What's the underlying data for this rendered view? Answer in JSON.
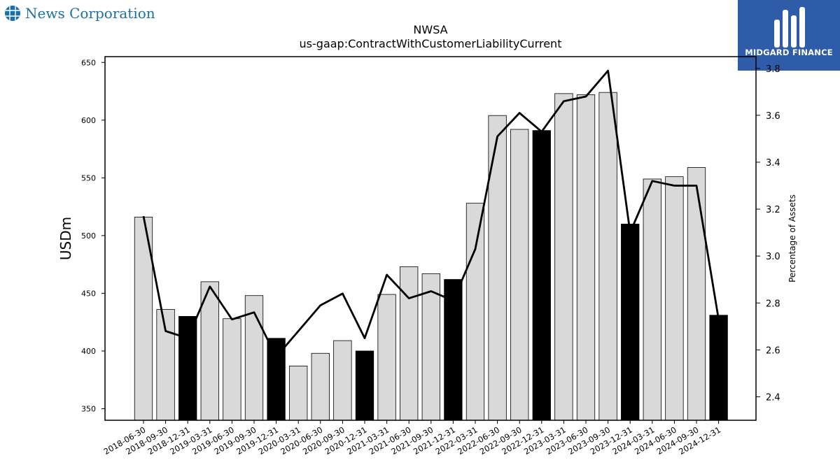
{
  "logos": {
    "left_text": "News Corporation",
    "right_text": "MIDGARD FINANCE"
  },
  "chart_data": {
    "type": "bar",
    "title": "NWSA",
    "subtitle": "us-gaap:ContractWithCustomerLiabilityCurrent",
    "ylabel": "USDm",
    "y2label": "Percentage of Assets",
    "ylim": [
      340,
      655
    ],
    "y2lim": [
      2.3,
      3.85
    ],
    "yticks": [
      350,
      400,
      450,
      500,
      550,
      600,
      650
    ],
    "y2ticks": [
      2.4,
      2.6,
      2.8,
      3.0,
      3.2,
      3.4,
      3.6,
      3.8
    ],
    "y2ticklabels": [
      "2.4",
      "2.6",
      "2.8",
      "3.0",
      "3.2",
      "3.4",
      "3.6",
      "3.8"
    ],
    "categories": [
      "2018-06-30",
      "2018-09-30",
      "2018-12-31",
      "2019-03-31",
      "2019-06-30",
      "2019-09-30",
      "2019-12-31",
      "2020-03-31",
      "2020-06-30",
      "2020-09-30",
      "2020-12-31",
      "2021-03-31",
      "2021-06-30",
      "2021-09-30",
      "2021-12-31",
      "2022-03-31",
      "2022-06-30",
      "2022-09-30",
      "2022-12-31",
      "2023-03-31",
      "2023-06-30",
      "2023-09-30",
      "2023-12-31",
      "2024-03-31",
      "2024-06-30",
      "2024-09-30",
      "2024-12-31"
    ],
    "values": [
      516,
      436,
      430,
      460,
      428,
      448,
      411,
      387,
      398,
      409,
      400,
      449,
      473,
      467,
      462,
      528,
      604,
      592,
      591,
      623,
      622,
      624,
      510,
      549,
      551,
      559,
      431
    ],
    "highlight": [
      false,
      false,
      true,
      false,
      false,
      false,
      true,
      false,
      false,
      false,
      true,
      false,
      false,
      false,
      true,
      false,
      false,
      false,
      true,
      false,
      false,
      false,
      true,
      false,
      false,
      false,
      true
    ],
    "line_values": [
      3.17,
      2.68,
      2.65,
      2.87,
      2.73,
      2.76,
      2.57,
      2.68,
      2.79,
      2.84,
      2.65,
      2.92,
      2.82,
      2.85,
      2.81,
      3.03,
      3.51,
      3.61,
      3.53,
      3.66,
      3.68,
      3.79,
      3.1,
      3.32,
      3.3,
      3.3,
      2.73
    ],
    "colors": {
      "bar": "#d9d9d9",
      "bar_highlight": "#000000",
      "bar_edge": "#000000",
      "line": "#000000"
    },
    "grid": false,
    "legend": "none"
  }
}
